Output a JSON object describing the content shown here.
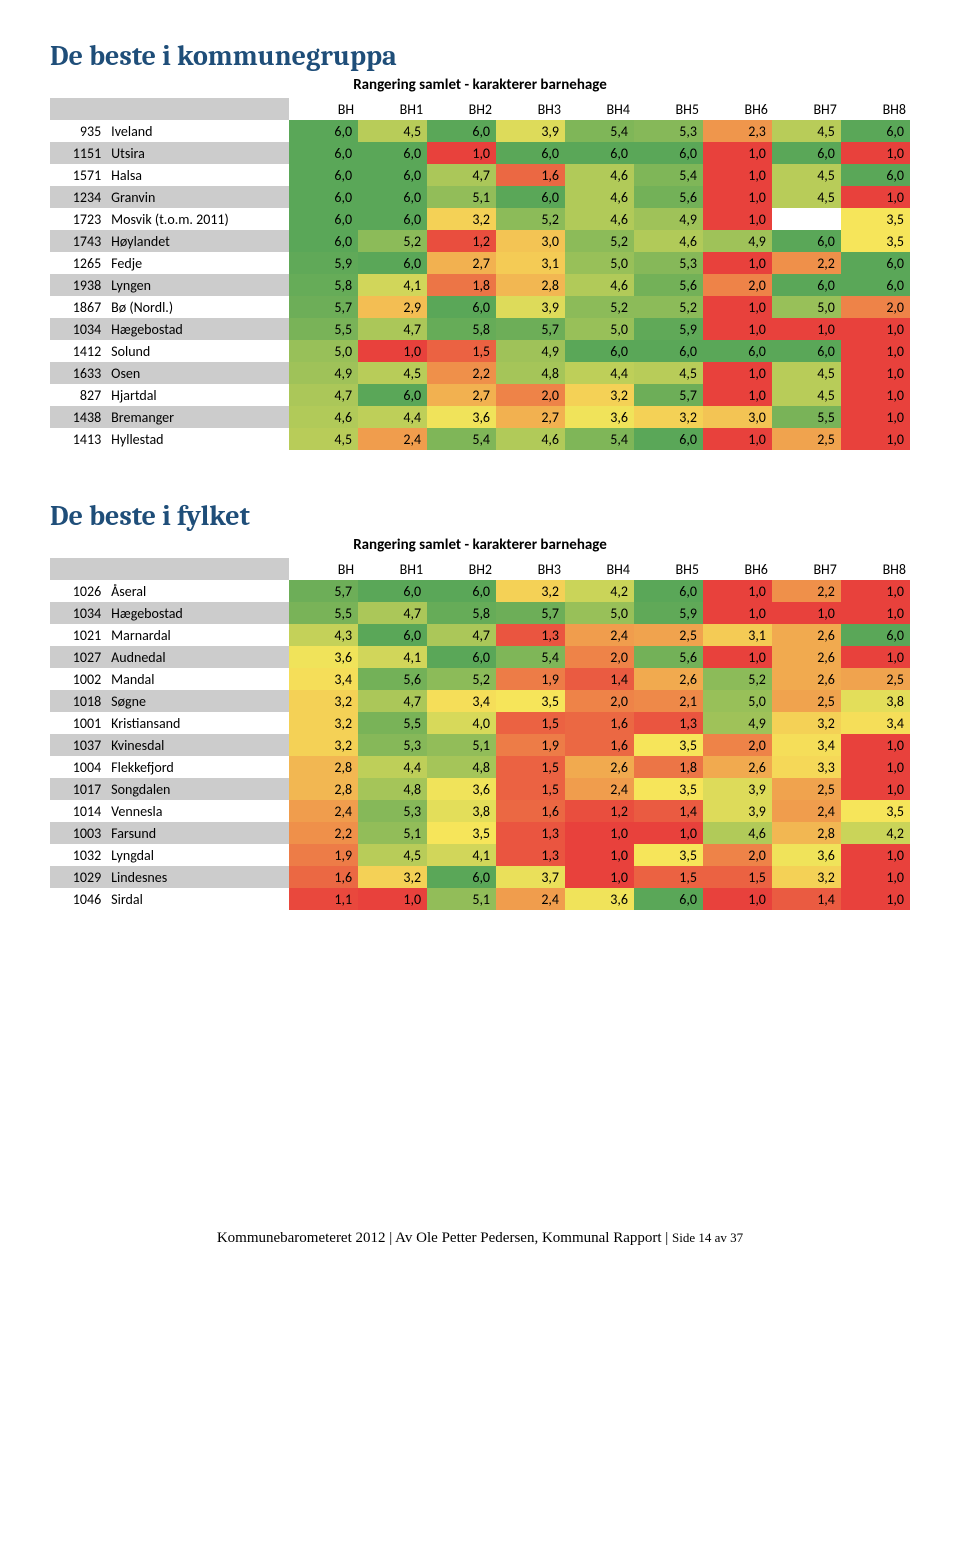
{
  "scale_min": 1.0,
  "scale_max": 6.0,
  "color_low": "#e8413c",
  "color_mid": "#f6e55a",
  "color_high": "#5aa758",
  "empty_bg": "#ffffff",
  "sections": [
    {
      "title": "De beste i kommunegruppa",
      "subtitle": "Rangering samlet - karakterer barnehage",
      "headers": [
        "",
        "",
        "BH",
        "BH1",
        "BH2",
        "BH3",
        "BH4",
        "BH5",
        "BH6",
        "BH7",
        "BH8"
      ],
      "rows": [
        {
          "id": "935",
          "name": "Iveland",
          "v": [
            "6,0",
            "4,5",
            "6,0",
            "3,9",
            "5,4",
            "5,3",
            "2,3",
            "4,5",
            "6,0"
          ]
        },
        {
          "id": "1151",
          "name": "Utsira",
          "v": [
            "6,0",
            "6,0",
            "1,0",
            "6,0",
            "6,0",
            "6,0",
            "1,0",
            "6,0",
            "1,0"
          ]
        },
        {
          "id": "1571",
          "name": "Halsa",
          "v": [
            "6,0",
            "6,0",
            "4,7",
            "1,6",
            "4,6",
            "5,4",
            "1,0",
            "4,5",
            "6,0"
          ]
        },
        {
          "id": "1234",
          "name": "Granvin",
          "v": [
            "6,0",
            "6,0",
            "5,1",
            "6,0",
            "4,6",
            "5,6",
            "1,0",
            "4,5",
            "1,0"
          ]
        },
        {
          "id": "1723",
          "name": "Mosvik (t.o.m. 2011)",
          "v": [
            "6,0",
            "6,0",
            "3,2",
            "5,2",
            "4,6",
            "4,9",
            "1,0",
            "",
            "3,5"
          ]
        },
        {
          "id": "1743",
          "name": "Høylandet",
          "v": [
            "6,0",
            "5,2",
            "1,2",
            "3,0",
            "5,2",
            "4,6",
            "4,9",
            "6,0",
            "3,5"
          ]
        },
        {
          "id": "1265",
          "name": "Fedje",
          "v": [
            "5,9",
            "6,0",
            "2,7",
            "3,1",
            "5,0",
            "5,3",
            "1,0",
            "2,2",
            "6,0"
          ]
        },
        {
          "id": "1938",
          "name": "Lyngen",
          "v": [
            "5,8",
            "4,1",
            "1,8",
            "2,8",
            "4,6",
            "5,6",
            "2,0",
            "6,0",
            "6,0"
          ]
        },
        {
          "id": "1867",
          "name": "Bø (Nordl.)",
          "v": [
            "5,7",
            "2,9",
            "6,0",
            "3,9",
            "5,2",
            "5,2",
            "1,0",
            "5,0",
            "2,0"
          ]
        },
        {
          "id": "1034",
          "name": "Hægebostad",
          "v": [
            "5,5",
            "4,7",
            "5,8",
            "5,7",
            "5,0",
            "5,9",
            "1,0",
            "1,0",
            "1,0"
          ]
        },
        {
          "id": "1412",
          "name": "Solund",
          "v": [
            "5,0",
            "1,0",
            "1,5",
            "4,9",
            "6,0",
            "6,0",
            "6,0",
            "6,0",
            "1,0"
          ]
        },
        {
          "id": "1633",
          "name": "Osen",
          "v": [
            "4,9",
            "4,5",
            "2,2",
            "4,8",
            "4,4",
            "4,5",
            "1,0",
            "4,5",
            "1,0"
          ]
        },
        {
          "id": "827",
          "name": "Hjartdal",
          "v": [
            "4,7",
            "6,0",
            "2,7",
            "2,0",
            "3,2",
            "5,7",
            "1,0",
            "4,5",
            "1,0"
          ]
        },
        {
          "id": "1438",
          "name": "Bremanger",
          "v": [
            "4,6",
            "4,4",
            "3,6",
            "2,7",
            "3,6",
            "3,2",
            "3,0",
            "5,5",
            "1,0"
          ]
        },
        {
          "id": "1413",
          "name": "Hyllestad",
          "v": [
            "4,5",
            "2,4",
            "5,4",
            "4,6",
            "5,4",
            "6,0",
            "1,0",
            "2,5",
            "1,0"
          ]
        }
      ]
    },
    {
      "title": "De beste i fylket",
      "subtitle": "Rangering samlet - karakterer barnehage",
      "headers": [
        "",
        "",
        "BH",
        "BH1",
        "BH2",
        "BH3",
        "BH4",
        "BH5",
        "BH6",
        "BH7",
        "BH8"
      ],
      "rows": [
        {
          "id": "1026",
          "name": "Åseral",
          "v": [
            "5,7",
            "6,0",
            "6,0",
            "3,2",
            "4,2",
            "6,0",
            "1,0",
            "2,2",
            "1,0"
          ]
        },
        {
          "id": "1034",
          "name": "Hægebostad",
          "v": [
            "5,5",
            "4,7",
            "5,8",
            "5,7",
            "5,0",
            "5,9",
            "1,0",
            "1,0",
            "1,0"
          ]
        },
        {
          "id": "1021",
          "name": "Marnardal",
          "v": [
            "4,3",
            "6,0",
            "4,7",
            "1,3",
            "2,4",
            "2,5",
            "3,1",
            "2,6",
            "6,0"
          ]
        },
        {
          "id": "1027",
          "name": "Audnedal",
          "v": [
            "3,6",
            "4,1",
            "6,0",
            "5,4",
            "2,0",
            "5,6",
            "1,0",
            "2,6",
            "1,0"
          ]
        },
        {
          "id": "1002",
          "name": "Mandal",
          "v": [
            "3,4",
            "5,6",
            "5,2",
            "1,9",
            "1,4",
            "2,6",
            "5,2",
            "2,6",
            "2,5"
          ]
        },
        {
          "id": "1018",
          "name": "Søgne",
          "v": [
            "3,2",
            "4,7",
            "3,4",
            "3,5",
            "2,0",
            "2,1",
            "5,0",
            "2,5",
            "3,8"
          ]
        },
        {
          "id": "1001",
          "name": "Kristiansand",
          "v": [
            "3,2",
            "5,5",
            "4,0",
            "1,5",
            "1,6",
            "1,3",
            "4,9",
            "3,2",
            "3,4"
          ]
        },
        {
          "id": "1037",
          "name": "Kvinesdal",
          "v": [
            "3,2",
            "5,3",
            "5,1",
            "1,9",
            "1,6",
            "3,5",
            "2,0",
            "3,4",
            "1,0"
          ]
        },
        {
          "id": "1004",
          "name": "Flekkefjord",
          "v": [
            "2,8",
            "4,4",
            "4,8",
            "1,5",
            "2,6",
            "1,8",
            "2,6",
            "3,3",
            "1,0"
          ]
        },
        {
          "id": "1017",
          "name": "Songdalen",
          "v": [
            "2,8",
            "4,8",
            "3,6",
            "1,5",
            "2,4",
            "3,5",
            "3,9",
            "2,5",
            "1,0"
          ]
        },
        {
          "id": "1014",
          "name": "Vennesla",
          "v": [
            "2,4",
            "5,3",
            "3,8",
            "1,6",
            "1,2",
            "1,4",
            "3,9",
            "2,4",
            "3,5"
          ]
        },
        {
          "id": "1003",
          "name": "Farsund",
          "v": [
            "2,2",
            "5,1",
            "3,5",
            "1,3",
            "1,0",
            "1,0",
            "4,6",
            "2,8",
            "4,2"
          ]
        },
        {
          "id": "1032",
          "name": "Lyngdal",
          "v": [
            "1,9",
            "4,5",
            "4,1",
            "1,3",
            "1,0",
            "3,5",
            "2,0",
            "3,6",
            "1,0"
          ]
        },
        {
          "id": "1029",
          "name": "Lindesnes",
          "v": [
            "1,6",
            "3,2",
            "6,0",
            "3,7",
            "1,0",
            "1,5",
            "1,5",
            "3,2",
            "1,0"
          ]
        },
        {
          "id": "1046",
          "name": "Sirdal",
          "v": [
            "1,1",
            "1,0",
            "5,1",
            "2,4",
            "3,6",
            "6,0",
            "1,0",
            "1,4",
            "1,0"
          ]
        }
      ]
    }
  ],
  "footer": {
    "main": "Kommunebarometeret 2012 | Av Ole Petter Pedersen, Kommunal Rapport | ",
    "page": "Side 14 av 37"
  }
}
